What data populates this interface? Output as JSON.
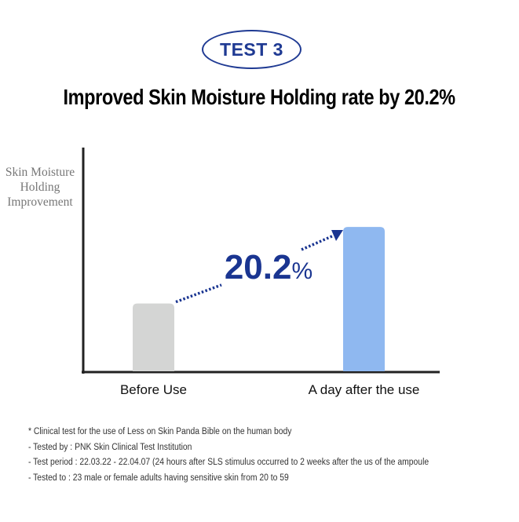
{
  "badge": "TEST 3",
  "title": "Improved Skin Moisture Holding rate by 20.2%",
  "chart_data": {
    "type": "bar",
    "title": "Improved Skin Moisture Holding rate by 20.2%",
    "ylabel": "Skin Moisture Holding Improvement",
    "categories": [
      "Before Use",
      "A day after the use"
    ],
    "values": [
      0.47,
      1.0
    ],
    "ylim": [
      0,
      1.55
    ],
    "grid": false,
    "annotation": {
      "value": "20.2",
      "unit": "%"
    },
    "colors": {
      "before": "#d4d5d4",
      "after": "#8fb8f0",
      "accent": "#1a3591",
      "axis": "#222222"
    }
  },
  "notes": [
    "* Clinical test for the use of Less on Skin Panda Bible on the human body",
    "- Tested by : PNK Skin Clinical Test Institution",
    "- Test period : 22.03.22 - 22.04.07 (24 hours after SLS stimulus occurred to 2 weeks after the us of the ampoule",
    "- Tested to : 23 male or female adults having sensitive skin from 20 to 59"
  ]
}
